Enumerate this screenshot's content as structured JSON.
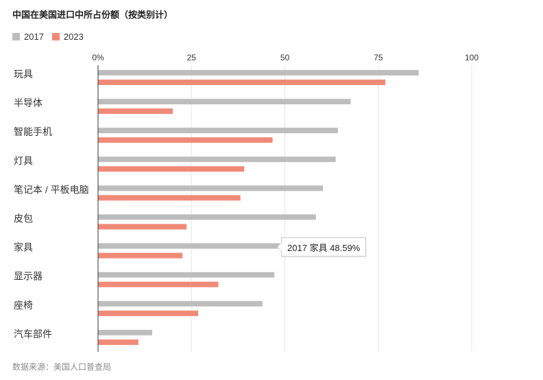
{
  "chart_data": {
    "type": "bar",
    "orientation": "horizontal",
    "title": "中国在美国进口中所占份额（按类别计）",
    "categories": [
      "玩具",
      "半导体",
      "智能手机",
      "灯具",
      "笔记本 / 平板电脑",
      "皮包",
      "家具",
      "显示器",
      "座椅",
      "汽车部件"
    ],
    "series": [
      {
        "name": "2017",
        "color": "#bdbdbd",
        "values": [
          85.8,
          67.6,
          64.2,
          63.6,
          60.2,
          58.3,
          48.59,
          47.2,
          44.0,
          14.5
        ]
      },
      {
        "name": "2023",
        "color": "#f08a78",
        "values": [
          76.9,
          20.0,
          46.7,
          39.1,
          38.1,
          23.7,
          22.6,
          32.2,
          26.8,
          10.8
        ]
      }
    ],
    "xlim": [
      0,
      100
    ],
    "xticks": [
      0,
      25,
      50,
      75,
      100
    ],
    "xtick_labels": [
      "0%",
      "25",
      "50",
      "75",
      "100"
    ],
    "grid": true,
    "legend_position": "top-left",
    "source": "数据来源：美国人口普查局",
    "tooltip": {
      "series": "2017",
      "category": "家具",
      "text": "2017 家具 48.59%"
    }
  }
}
